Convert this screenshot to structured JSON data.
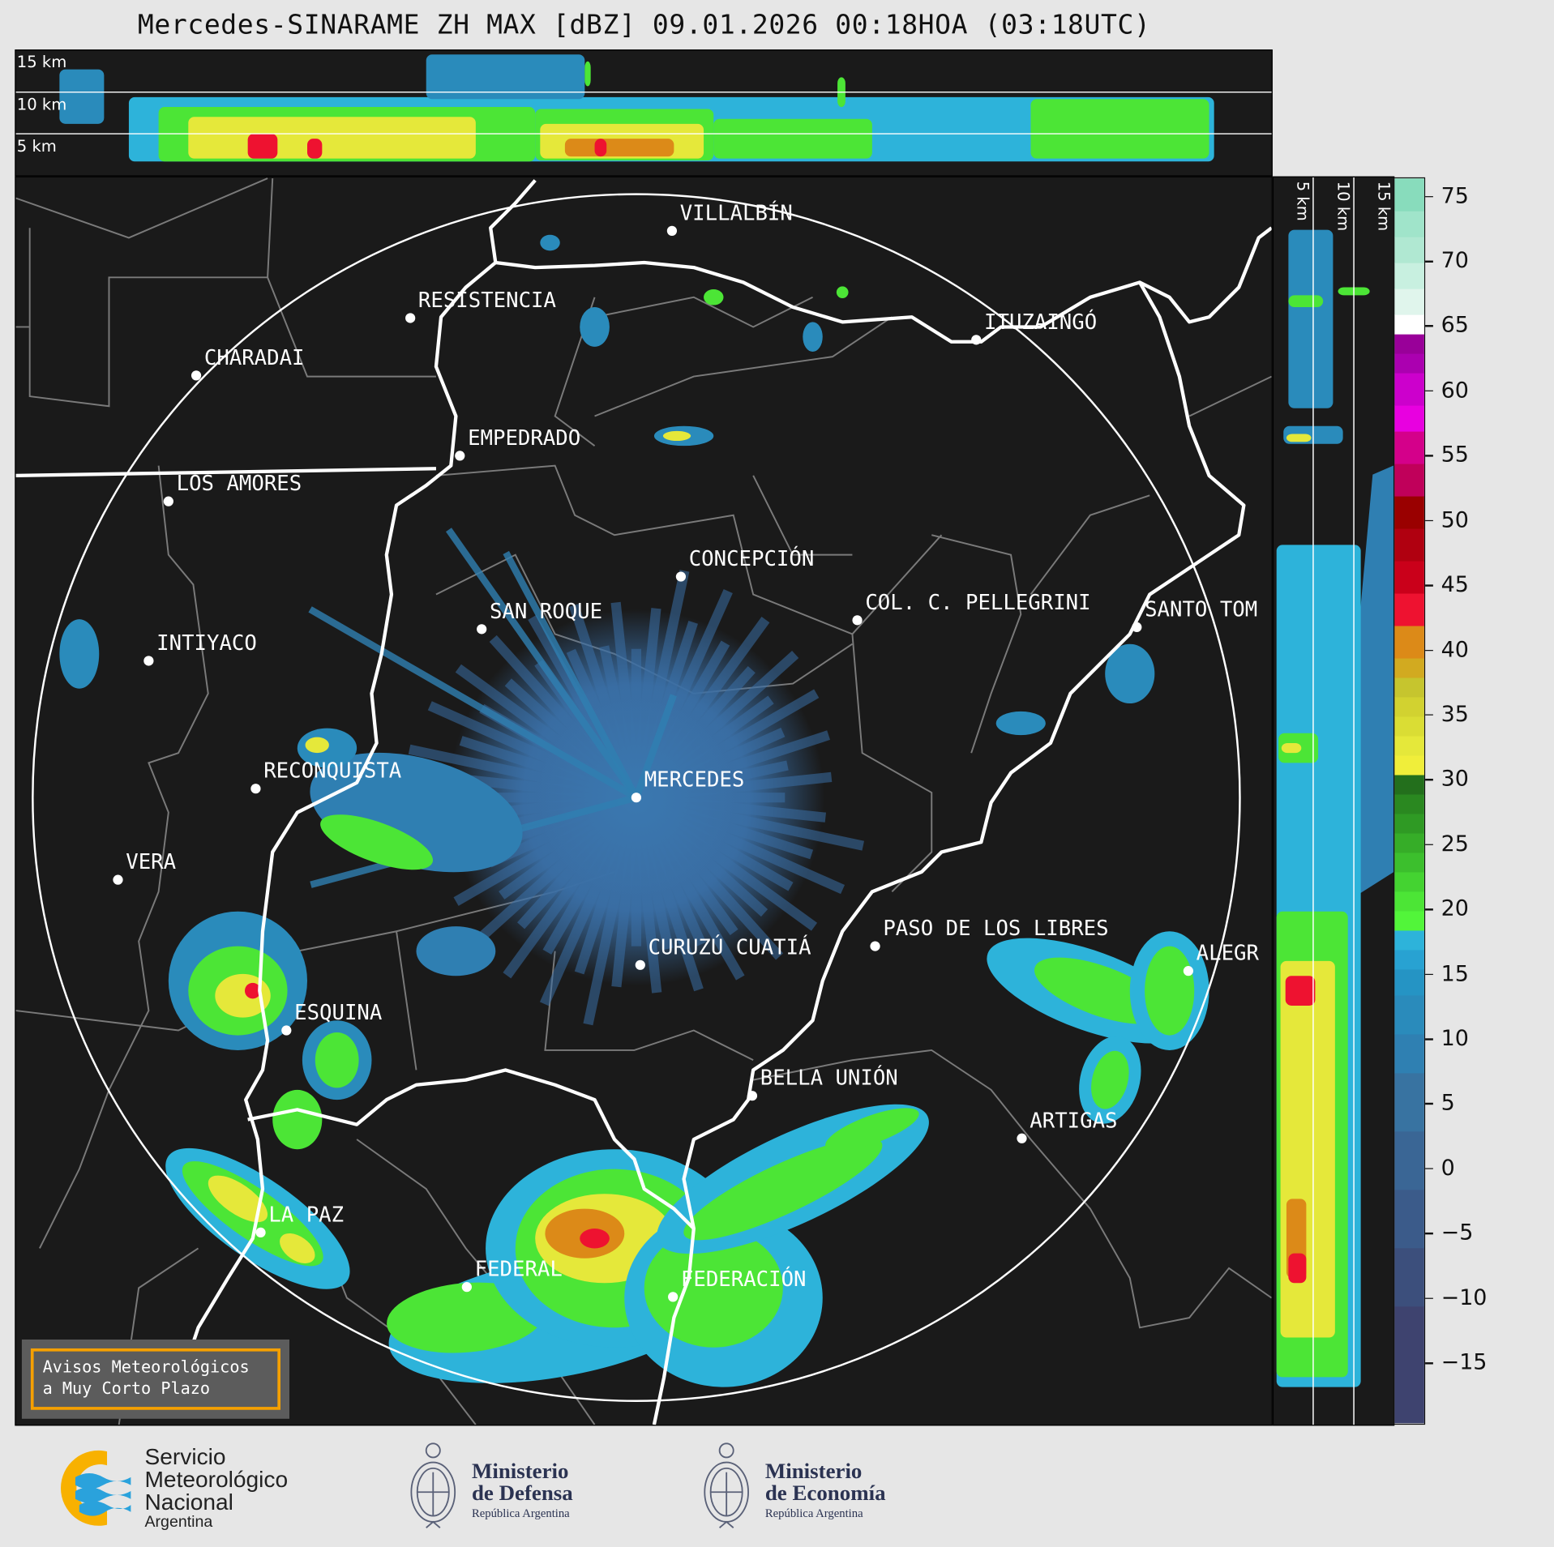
{
  "title": "Mercedes-SINARAME ZH MAX [dBZ] 09.01.2026 00:18HOA (03:18UTC)",
  "top_panel": {
    "height_labels": [
      "15 km",
      "10 km",
      "5 km"
    ]
  },
  "side_panel": {
    "height_labels": [
      "5 km",
      "10 km",
      "15 km"
    ]
  },
  "cities": [
    "VILLALBÍN",
    "RESISTENCIA",
    "CHARADAI",
    "ITUZAINGÓ",
    "EMPEDRADO",
    "LOS AMORES",
    "CONCEPCIÓN",
    "SAN ROQUE",
    "COL. C. PELLEGRINI",
    "SANTO TOM",
    "INTIYACO",
    "MERCEDES",
    "RECONQUISTA",
    "VERA",
    "CURUZÚ CUATIÁ",
    "PASO DE LOS LIBRES",
    "ALEGR",
    "ESQUINA",
    "BELLA UNIÓN",
    "ARTIGAS",
    "LA PAZ",
    "FEDERAL",
    "FEDERACIÓN"
  ],
  "colorbar": {
    "unit": "dBZ",
    "range": [
      -19.5,
      76.5
    ],
    "ticks": [
      "75",
      "70",
      "65",
      "60",
      "55",
      "50",
      "45",
      "40",
      "35",
      "30",
      "25",
      "20",
      "15",
      "10",
      "5",
      "0",
      "−5",
      "−10",
      "−15"
    ],
    "tick_values": [
      75,
      70,
      65,
      60,
      55,
      50,
      45,
      40,
      35,
      30,
      25,
      20,
      15,
      10,
      5,
      0,
      -5,
      -10,
      -15
    ],
    "bins": [
      [
        -19.5,
        -10.5,
        "#3e436f"
      ],
      [
        -10.5,
        -6,
        "#3c4f7c"
      ],
      [
        -6,
        -1.5,
        "#3b5b8a"
      ],
      [
        -1.5,
        3,
        "#3a6695"
      ],
      [
        3,
        7.5,
        "#3873a1"
      ],
      [
        7.5,
        10.5,
        "#2f80b2"
      ],
      [
        10.5,
        13.5,
        "#2a8bbb"
      ],
      [
        13.5,
        15.5,
        "#2594c4"
      ],
      [
        15.5,
        17,
        "#28a2d2"
      ],
      [
        17,
        18.5,
        "#2db3da"
      ],
      [
        18.5,
        20,
        "#52f53a"
      ],
      [
        20,
        21.5,
        "#4ce536"
      ],
      [
        21.5,
        23,
        "#44d331"
      ],
      [
        23,
        24.5,
        "#3cbf2d"
      ],
      [
        24.5,
        26,
        "#36ad28"
      ],
      [
        26,
        27.5,
        "#2f9a24"
      ],
      [
        27.5,
        29,
        "#2a8820"
      ],
      [
        29,
        30.5,
        "#236f1c"
      ],
      [
        30.5,
        32,
        "#f0ee3a"
      ],
      [
        32,
        33.5,
        "#e5e83a"
      ],
      [
        33.5,
        35,
        "#dadd34"
      ],
      [
        35,
        36.5,
        "#d2d230"
      ],
      [
        36.5,
        38,
        "#c6c52e"
      ],
      [
        38,
        39.5,
        "#d2aa20"
      ],
      [
        39.5,
        42,
        "#dc8a18"
      ],
      [
        42,
        44.5,
        "#ee1230"
      ],
      [
        44.5,
        47,
        "#ca001a"
      ],
      [
        47,
        49.5,
        "#b00010"
      ],
      [
        49.5,
        52,
        "#9a0000"
      ],
      [
        52,
        54.5,
        "#c0005a"
      ],
      [
        54.5,
        57,
        "#d4008a"
      ],
      [
        57,
        59,
        "#e800e0"
      ],
      [
        59,
        61.5,
        "#cc00cc"
      ],
      [
        61.5,
        63,
        "#ab00b0"
      ],
      [
        63,
        64.5,
        "#990099"
      ],
      [
        64.5,
        66,
        "#ffffff"
      ],
      [
        66,
        68,
        "#e0f5ec"
      ],
      [
        68,
        70,
        "#c8f0e0"
      ],
      [
        70,
        72,
        "#b0e8d2"
      ],
      [
        72,
        74,
        "#a0e4ca"
      ],
      [
        74,
        76.5,
        "#88dcbc"
      ]
    ]
  },
  "warning_box": {
    "line1": "Avisos Meteorológicos",
    "line2": "a Muy Corto Plazo",
    "border_color": "#f5a000"
  },
  "footer": {
    "smn": {
      "line1": "Servicio",
      "line2": "Meteorológico",
      "line3": "Nacional",
      "line4": "Argentina"
    },
    "defensa": {
      "line1": "Ministerio",
      "line2": "de Defensa",
      "line3": "República Argentina"
    },
    "economia": {
      "line1": "Ministerio",
      "line2": "de Economía",
      "line3": "República Argentina"
    }
  }
}
